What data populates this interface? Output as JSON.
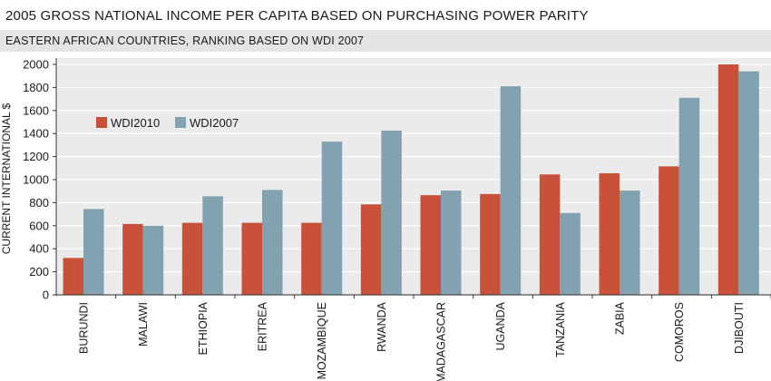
{
  "chart_data": {
    "type": "bar",
    "title": "2005 GROSS NATIONAL INCOME PER CAPITA BASED ON PURCHASING POWER PARITY",
    "subtitle": "EASTERN AFRICAN COUNTRIES, RANKING BASED ON WDI 2007",
    "ylabel": "CURRENT INTERNATIONAL $",
    "xlabel": "",
    "ylim": [
      0,
      2000
    ],
    "yticks": [
      0,
      200,
      400,
      600,
      800,
      1000,
      1200,
      1400,
      1600,
      1800,
      2000
    ],
    "grid": true,
    "legend_position": "top-left",
    "categories": [
      "BURUNDI",
      "MALAWI",
      "ETHIOPIA",
      "ERITREA",
      "MOZAMBIQUE",
      "RWANDA",
      "MADAGASCAR",
      "UGANDA",
      "TANZANIA",
      "ZABIA",
      "COMOROS",
      "DJIBOUTI"
    ],
    "series": [
      {
        "name": "WDI2010",
        "color": "#c9513a",
        "values": [
          320,
          615,
          625,
          625,
          625,
          785,
          865,
          875,
          1045,
          1055,
          1115,
          2000
        ]
      },
      {
        "name": "WDI2007",
        "color": "#82a2b2",
        "values": [
          745,
          600,
          855,
          910,
          1330,
          1425,
          905,
          1810,
          710,
          905,
          1710,
          1940
        ]
      }
    ]
  }
}
